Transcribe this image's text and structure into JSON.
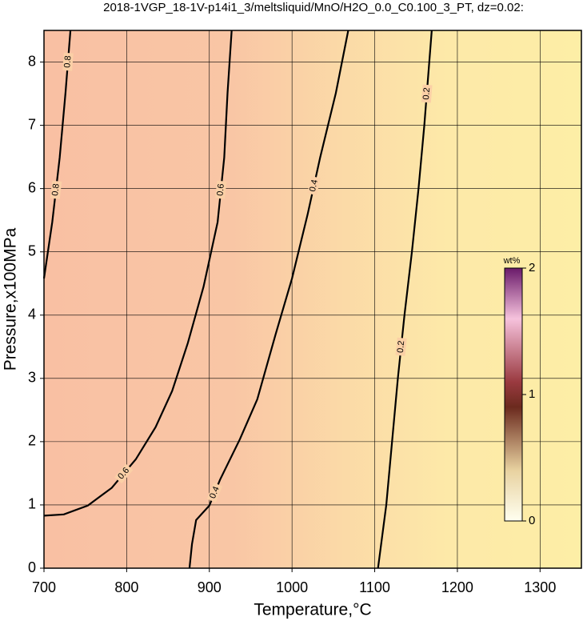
{
  "chart_data": {
    "type": "contour",
    "title": "2018-1VGP_18-1V-p14i1_3/meltsliquid/MnO/H2O_0.0_C0.100_3_PT, dz=0.02:",
    "x_label": "Temperature,°C",
    "y_label": "Pressure,x100MPa",
    "xlim": [
      700,
      1350
    ],
    "ylim": [
      0,
      8.5
    ],
    "xticks": [
      700,
      800,
      900,
      1000,
      1100,
      1200,
      1300
    ],
    "yticks": [
      0,
      1,
      2,
      3,
      4,
      5,
      6,
      7,
      8
    ],
    "grid": true,
    "contours": [
      {
        "level": 0.8,
        "x": [
          700,
          710,
          719,
          726,
          732
        ],
        "y": [
          4.58,
          5.47,
          6.49,
          7.51,
          8.5
        ]
      },
      {
        "level": 0.6,
        "x": [
          700,
          724,
          753,
          782,
          811,
          835,
          855,
          874,
          893,
          910,
          918,
          922,
          927
        ],
        "y": [
          0.83,
          0.85,
          0.99,
          1.27,
          1.72,
          2.23,
          2.8,
          3.56,
          4.45,
          5.47,
          6.49,
          7.51,
          8.5
        ]
      },
      {
        "level": 0.4,
        "x": [
          876,
          879,
          884,
          900,
          913,
          937,
          958,
          980,
          1000,
          1019,
          1034,
          1053,
          1068
        ],
        "y": [
          0,
          0.38,
          0.76,
          0.99,
          1.4,
          2.04,
          2.67,
          3.69,
          4.58,
          5.6,
          6.49,
          7.51,
          8.5
        ]
      },
      {
        "level": 0.2,
        "x": [
          1104,
          1114,
          1121,
          1128,
          1136,
          1145,
          1153,
          1160,
          1166,
          1169
        ],
        "y": [
          0,
          1,
          2,
          3,
          4,
          5,
          6,
          7,
          8,
          8.5
        ]
      }
    ],
    "colorbar": {
      "label": "wt%",
      "lim": [
        0,
        2
      ],
      "ticks": [
        0,
        1,
        2
      ]
    }
  }
}
